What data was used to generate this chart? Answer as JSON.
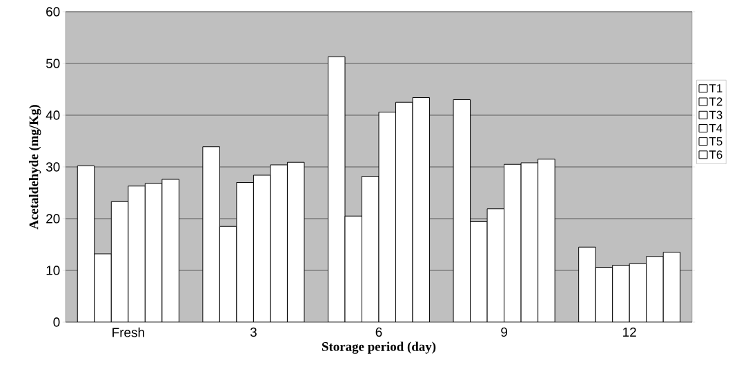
{
  "chart_data": {
    "type": "bar",
    "xlabel": "Storage period (day)",
    "ylabel": "Acetaldehyde (mg/Kg)",
    "categories": [
      "Fresh",
      "3",
      "6",
      "9",
      "12"
    ],
    "series": [
      {
        "name": "T1",
        "color": "#ffffff",
        "values": [
          30.2,
          33.9,
          51.3,
          43.0,
          14.5
        ]
      },
      {
        "name": "T2",
        "color": "#ffffff",
        "values": [
          13.2,
          18.5,
          20.5,
          19.4,
          10.6
        ]
      },
      {
        "name": "T3",
        "color": "#ffffff",
        "values": [
          23.3,
          27.0,
          28.2,
          21.9,
          11.0
        ]
      },
      {
        "name": "T4",
        "color": "#ffffff",
        "values": [
          26.3,
          28.4,
          40.6,
          30.5,
          11.3
        ]
      },
      {
        "name": "T5",
        "color": "#ffffff",
        "values": [
          26.8,
          30.4,
          42.5,
          30.8,
          12.7
        ]
      },
      {
        "name": "T6",
        "color": "#ffffff",
        "values": [
          27.6,
          30.9,
          43.4,
          31.5,
          13.5
        ]
      }
    ],
    "ylim": [
      0,
      60
    ],
    "yticks": [
      0,
      10,
      20,
      30,
      40,
      50,
      60
    ],
    "grid": "y",
    "legend": "right"
  }
}
